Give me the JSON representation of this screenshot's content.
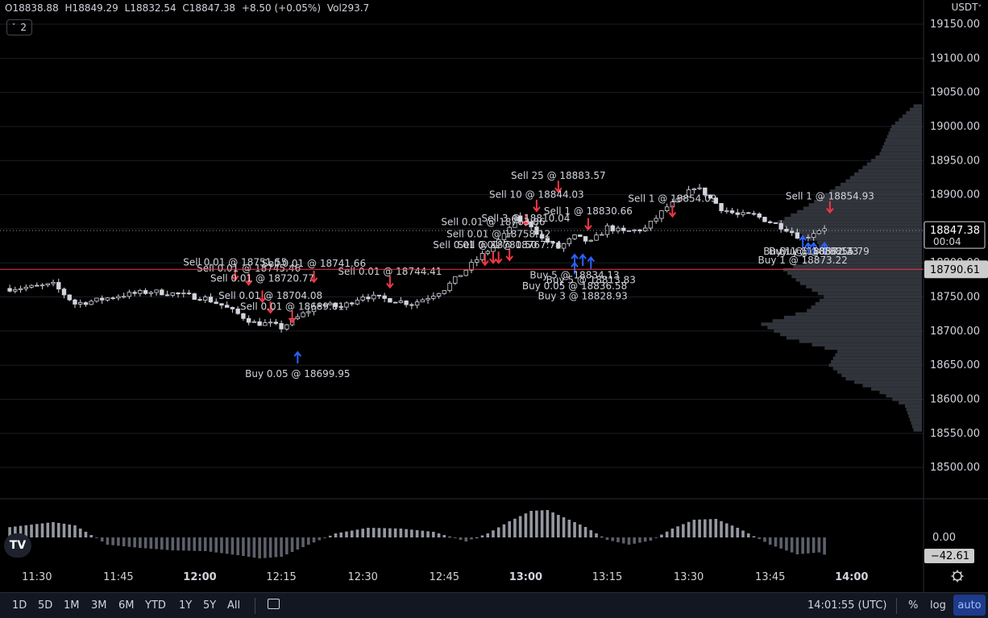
{
  "ohlc": {
    "open": "O18838.88",
    "high": "H18849.29",
    "low": "L18832.54",
    "close": "C18847.38",
    "change": "+8.50 (+0.05%)",
    "volume": "Vol293.7"
  },
  "series_badge": "2",
  "currency": "USDT",
  "price_label": "18847.38",
  "countdown": "00:04",
  "level_label": "18790.61",
  "osc_zero_label": "0.00",
  "osc_value_label": "−42.61",
  "timeframes": [
    "1D",
    "5D",
    "1M",
    "3M",
    "6M",
    "YTD",
    "1Y",
    "5Y",
    "All"
  ],
  "clock": "14:01:55 (UTC)",
  "percent_btn": "%",
  "log_btn": "log",
  "auto_btn": "auto",
  "colors": {
    "sell": "#f23645",
    "buy": "#2962ff",
    "level": "#f23645",
    "candle": "#d1d4dc"
  },
  "chart_data": {
    "type": "candlestick",
    "y_ticks": [
      19150,
      19100,
      19050,
      19000,
      18950,
      18900,
      18850,
      18800,
      18750,
      18700,
      18650,
      18600,
      18550,
      18500
    ],
    "y_tick_labels": [
      "19150.00",
      "19100.00",
      "19050.00",
      "19000.00",
      "18950.00",
      "18900.00",
      "18850.00",
      "18800.00",
      "18750.00",
      "18700.00",
      "18650.00",
      "18600.00",
      "18550.00",
      "18500.00"
    ],
    "x_ticks": [
      {
        "label": "11:30",
        "t": 690,
        "bold": false
      },
      {
        "label": "11:45",
        "t": 705,
        "bold": false
      },
      {
        "label": "12:00",
        "t": 720,
        "bold": true
      },
      {
        "label": "12:15",
        "t": 735,
        "bold": false
      },
      {
        "label": "12:30",
        "t": 750,
        "bold": false
      },
      {
        "label": "12:45",
        "t": 765,
        "bold": false
      },
      {
        "label": "13:00",
        "t": 780,
        "bold": true
      },
      {
        "label": "13:15",
        "t": 795,
        "bold": false
      },
      {
        "label": "13:30",
        "t": 810,
        "bold": false
      },
      {
        "label": "13:45",
        "t": 825,
        "bold": false
      },
      {
        "label": "14:00",
        "t": 840,
        "bold": true
      }
    ],
    "last_price": 18847.38,
    "level_price": 18790.61,
    "candle_anchors": [
      [
        -1,
        18762
      ],
      [
        5,
        18765
      ],
      [
        8,
        18768
      ],
      [
        12,
        18740
      ],
      [
        16,
        18745
      ],
      [
        20,
        18752
      ],
      [
        26,
        18758
      ],
      [
        30,
        18755
      ],
      [
        36,
        18748
      ],
      [
        39,
        18738
      ],
      [
        42,
        18725
      ],
      [
        45,
        18712
      ],
      [
        48,
        18710
      ],
      [
        50,
        18705
      ],
      [
        54,
        18725
      ],
      [
        57,
        18740
      ],
      [
        61,
        18735
      ],
      [
        65,
        18752
      ],
      [
        68,
        18748
      ],
      [
        71,
        18745
      ],
      [
        74,
        18740
      ],
      [
        77,
        18750
      ],
      [
        80,
        18762
      ],
      [
        84,
        18790
      ],
      [
        86,
        18805
      ],
      [
        88,
        18818
      ],
      [
        91,
        18840
      ],
      [
        93,
        18865
      ],
      [
        96,
        18855
      ],
      [
        98,
        18835
      ],
      [
        101,
        18822
      ],
      [
        104,
        18838
      ],
      [
        107,
        18830
      ],
      [
        110,
        18852
      ],
      [
        113,
        18845
      ],
      [
        117,
        18850
      ],
      [
        121,
        18882
      ],
      [
        124,
        18895
      ],
      [
        126,
        18912
      ],
      [
        128,
        18902
      ],
      [
        131,
        18880
      ],
      [
        134,
        18870
      ],
      [
        137,
        18870
      ],
      [
        140,
        18860
      ],
      [
        143,
        18850
      ],
      [
        146,
        18835
      ],
      [
        148,
        18845
      ],
      [
        150,
        18852
      ]
    ],
    "annotations": [
      {
        "type": "sell",
        "text": "Sell 0.01 @ 18751.55",
        "t": 726.5,
        "arrow": 18775,
        "label": 18801
      },
      {
        "type": "sell",
        "text": "Sell 0.01 @ 18745.46",
        "t": 729,
        "arrow": 18768,
        "label": 18792
      },
      {
        "type": "sell",
        "text": "Sell 0.01 @ 18720.77",
        "t": 731.5,
        "arrow": 18743,
        "label": 18777
      },
      {
        "type": "sell",
        "text": "Sell 0.01 @ 18704.08",
        "t": 733,
        "arrow": 18727,
        "label": 18752
      },
      {
        "type": "sell",
        "text": "Sell 0.01 @ 18689.01",
        "t": 737,
        "arrow": 18713,
        "label": 18736
      },
      {
        "type": "sell",
        "text": "Sell 0.01 @ 18741.66",
        "t": 741,
        "arrow": 18772,
        "label": 18799
      },
      {
        "type": "sell",
        "text": "Sell 0.01 @ 18744.41",
        "t": 755,
        "arrow": 18764,
        "label": 18787
      },
      {
        "type": "buy",
        "text": "Buy 0.05 @ 18699.95",
        "t": 738,
        "arrow": 18669,
        "label": 18637
      },
      {
        "type": "sell",
        "text": "Sell 25 @ 18883.57",
        "t": 786,
        "arrow": 18904,
        "label": 18928
      },
      {
        "type": "sell",
        "text": "Sell 10 @ 18844.03",
        "t": 782,
        "arrow": 18876,
        "label": 18900
      },
      {
        "type": "sell",
        "text": "Sell 3 @ 18810.04",
        "t": 780,
        "arrow": 18855,
        "label": 18865
      },
      {
        "type": "sell",
        "text": "Sell 0.01 @ 18763.86",
        "t": 774,
        "arrow": 18800,
        "label": 18860
      },
      {
        "type": "sell",
        "text": "Sell 0.01 @ 18758.12",
        "t": 775,
        "arrow": 18800,
        "label": 18842
      },
      {
        "type": "sell",
        "text": "Sell 0.01 @ 18767.74",
        "t": 777,
        "arrow": 18804,
        "label": 18826
      },
      {
        "type": "sell",
        "text": "Sell 0.01 @ 18780.50",
        "t": 772.5,
        "arrow": 18797,
        "label": 18826
      },
      {
        "type": "sell",
        "text": "Sell 1 @ 18830.66",
        "t": 791.5,
        "arrow": 18849,
        "label": 18876
      },
      {
        "type": "sell",
        "text": "Sell 1 @ 18854.09",
        "t": 807,
        "arrow": 18868,
        "label": 18894
      },
      {
        "type": "sell",
        "text": "Sell 1 @ 18854.93",
        "t": 836,
        "arrow": 18874,
        "label": 18898
      },
      {
        "type": "buy",
        "text": "Buy 5 @ 18834.13",
        "t": 789,
        "arrow": 18800,
        "label": 18782
      },
      {
        "type": "buy",
        "text": "Buy 5 @ 18813.83",
        "t": 792,
        "arrow": 18808,
        "label": 18775
      },
      {
        "type": "buy",
        "text": "Buy 0.05 @ 18836.58",
        "t": 789,
        "arrow": 18812,
        "label": 18766
      },
      {
        "type": "buy",
        "text": "Buy 3 @ 18828.93",
        "t": 790.5,
        "arrow": 18812,
        "label": 18751
      },
      {
        "type": "buy",
        "text": "Buy 1 @ 18855.79",
        "t": 835,
        "arrow": 18829,
        "label": 18817
      },
      {
        "type": "buy",
        "text": "Buy 1 @ 18873.22",
        "t": 831,
        "arrow": 18839,
        "label": 18804
      },
      {
        "type": "buy",
        "text": "Buy 1 @ 18862.23",
        "t": 833,
        "arrow": 18829,
        "label": 18817
      },
      {
        "type": "buy",
        "text": "Buy 1 @ 18857.14",
        "t": 832,
        "arrow": 18829,
        "label": 18817
      }
    ],
    "oscillator": {
      "zero_label": "0.00",
      "last_value": -42.61,
      "anchors": [
        [
          -1,
          60
        ],
        [
          8,
          95
        ],
        [
          12,
          75
        ],
        [
          18,
          -45
        ],
        [
          24,
          -65
        ],
        [
          30,
          -80
        ],
        [
          36,
          -85
        ],
        [
          42,
          -110
        ],
        [
          46,
          -130
        ],
        [
          50,
          -120
        ],
        [
          55,
          -45
        ],
        [
          60,
          25
        ],
        [
          66,
          60
        ],
        [
          72,
          55
        ],
        [
          78,
          35
        ],
        [
          84,
          -25
        ],
        [
          88,
          25
        ],
        [
          92,
          100
        ],
        [
          96,
          165
        ],
        [
          99,
          170
        ],
        [
          102,
          125
        ],
        [
          106,
          65
        ],
        [
          110,
          -15
        ],
        [
          114,
          -45
        ],
        [
          118,
          -20
        ],
        [
          122,
          55
        ],
        [
          126,
          110
        ],
        [
          130,
          115
        ],
        [
          134,
          60
        ],
        [
          140,
          -45
        ],
        [
          145,
          -105
        ],
        [
          150,
          -90
        ]
      ]
    },
    "volume_profile_anchors": [
      [
        19030,
        0.05
      ],
      [
        19000,
        0.18
      ],
      [
        18960,
        0.25
      ],
      [
        18920,
        0.45
      ],
      [
        18880,
        0.7
      ],
      [
        18860,
        0.85
      ],
      [
        18850,
        0.8
      ],
      [
        18830,
        0.62
      ],
      [
        18810,
        0.58
      ],
      [
        18790,
        0.82
      ],
      [
        18770,
        0.72
      ],
      [
        18750,
        0.58
      ],
      [
        18730,
        0.68
      ],
      [
        18710,
        0.95
      ],
      [
        18690,
        0.8
      ],
      [
        18670,
        0.5
      ],
      [
        18650,
        0.55
      ],
      [
        18630,
        0.45
      ],
      [
        18610,
        0.25
      ],
      [
        18590,
        0.1
      ],
      [
        18555,
        0.05
      ]
    ]
  }
}
